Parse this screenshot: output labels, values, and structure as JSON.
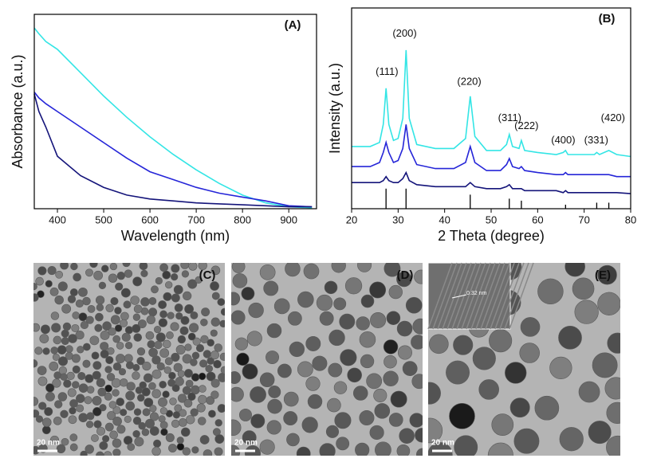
{
  "chart_data": [
    {
      "type": "line",
      "panel_label": "(A)",
      "x_label": "Wavelength (nm)",
      "y_label": "Absorbance (a.u.)",
      "x": [
        350,
        360,
        375,
        400,
        450,
        500,
        550,
        600,
        650,
        700,
        750,
        800,
        850,
        900,
        950
      ],
      "xlim": [
        350,
        960
      ],
      "xticks": [
        400,
        500,
        600,
        700,
        800,
        900
      ],
      "ylim": [
        0,
        1
      ],
      "series": [
        {
          "color": "#33e5e5",
          "values": [
            0.93,
            0.9,
            0.86,
            0.82,
            0.7,
            0.58,
            0.47,
            0.37,
            0.28,
            0.2,
            0.13,
            0.07,
            0.03,
            0.01,
            0.005
          ]
        },
        {
          "color": "#2525d8",
          "values": [
            0.6,
            0.57,
            0.54,
            0.5,
            0.42,
            0.34,
            0.26,
            0.19,
            0.15,
            0.11,
            0.08,
            0.06,
            0.04,
            0.015,
            0.01
          ]
        },
        {
          "color": "#14147a",
          "values": [
            0.59,
            0.5,
            0.42,
            0.27,
            0.17,
            0.11,
            0.07,
            0.05,
            0.04,
            0.03,
            0.025,
            0.02,
            0.015,
            0.01,
            0.01
          ]
        }
      ]
    },
    {
      "type": "line",
      "panel_label": "(B)",
      "x_label": "2 Theta (degree)",
      "y_label": "Intensity (a.u.)",
      "x": [
        20,
        22,
        24,
        26,
        26.8,
        27.4,
        28,
        29,
        30,
        31,
        31.7,
        32.4,
        34,
        38,
        42,
        44.5,
        45.5,
        46.5,
        49,
        52,
        53.3,
        53.9,
        54.6,
        56,
        56.5,
        57.2,
        60,
        64,
        65.5,
        66,
        66.5,
        70,
        72.2,
        72.7,
        73.3,
        75.3,
        77,
        80
      ],
      "xlim": [
        20,
        80
      ],
      "xticks": [
        20,
        30,
        40,
        50,
        60,
        70,
        80
      ],
      "ylim": [
        0,
        1
      ],
      "series": [
        {
          "color": "#33e5e5",
          "values": [
            0.31,
            0.31,
            0.31,
            0.33,
            0.42,
            0.6,
            0.42,
            0.34,
            0.35,
            0.45,
            0.79,
            0.45,
            0.32,
            0.3,
            0.3,
            0.35,
            0.56,
            0.36,
            0.29,
            0.29,
            0.32,
            0.37,
            0.31,
            0.3,
            0.34,
            0.29,
            0.28,
            0.27,
            0.28,
            0.29,
            0.27,
            0.27,
            0.27,
            0.28,
            0.27,
            0.29,
            0.27,
            0.26
          ]
        },
        {
          "color": "#2525d8",
          "values": [
            0.21,
            0.21,
            0.21,
            0.23,
            0.28,
            0.33,
            0.28,
            0.23,
            0.24,
            0.3,
            0.42,
            0.3,
            0.22,
            0.2,
            0.2,
            0.23,
            0.31,
            0.23,
            0.19,
            0.19,
            0.22,
            0.25,
            0.21,
            0.2,
            0.21,
            0.19,
            0.18,
            0.17,
            0.17,
            0.18,
            0.17,
            0.17,
            0.17,
            0.17,
            0.17,
            0.17,
            0.16,
            0.16
          ]
        },
        {
          "color": "#14147a",
          "values": [
            0.13,
            0.13,
            0.13,
            0.13,
            0.14,
            0.16,
            0.14,
            0.13,
            0.13,
            0.15,
            0.18,
            0.14,
            0.12,
            0.11,
            0.11,
            0.11,
            0.13,
            0.11,
            0.1,
            0.1,
            0.11,
            0.12,
            0.1,
            0.1,
            0.1,
            0.09,
            0.09,
            0.09,
            0.08,
            0.09,
            0.08,
            0.08,
            0.08,
            0.08,
            0.08,
            0.08,
            0.08,
            0.075
          ]
        }
      ],
      "reference_lines": {
        "x": [
          27.4,
          31.7,
          45.5,
          53.9,
          56.5,
          66,
          72.7,
          75.3
        ],
        "heights": [
          0.1,
          0.1,
          0.07,
          0.05,
          0.04,
          0.02,
          0.03,
          0.03
        ]
      },
      "annotations": [
        {
          "text": "(111)",
          "x": 27.6,
          "y": 0.68
        },
        {
          "text": "(200)",
          "x": 31.4,
          "y": 0.87
        },
        {
          "text": "(220)",
          "x": 45.3,
          "y": 0.63
        },
        {
          "text": "(311)",
          "x": 54,
          "y": 0.45
        },
        {
          "text": "(222)",
          "x": 57.6,
          "y": 0.41
        },
        {
          "text": "(400)",
          "x": 65.5,
          "y": 0.34
        },
        {
          "text": "(331)",
          "x": 72.6,
          "y": 0.34
        },
        {
          "text": "(420)",
          "x": 76.2,
          "y": 0.45
        }
      ]
    }
  ],
  "images": [
    {
      "label": "(C)",
      "scale_bar": "20 nm"
    },
    {
      "label": "(D)",
      "scale_bar": "20 nm"
    },
    {
      "label": "(E)",
      "scale_bar": "20 nm",
      "inset_label": "0.32 nm"
    }
  ]
}
